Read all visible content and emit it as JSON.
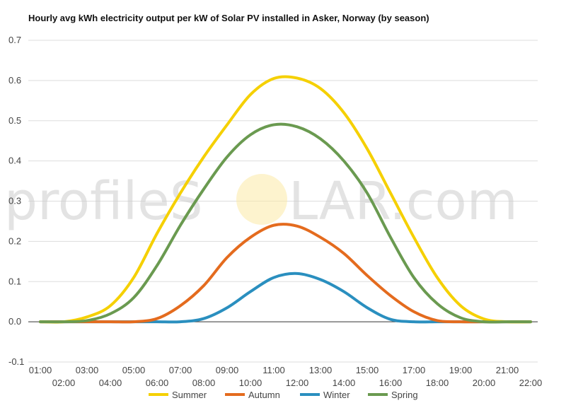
{
  "chart_data": {
    "type": "line",
    "title": "Hourly avg kWh electricity output per kW of Solar PV installed in Asker, Norway (by season)",
    "xlabel": "",
    "ylabel": "",
    "ylim": [
      -0.1,
      0.7
    ],
    "yticks": [
      "-0.1",
      "0.0",
      "0.1",
      "0.2",
      "0.3",
      "0.4",
      "0.5",
      "0.6",
      "0.7"
    ],
    "grid": true,
    "legend_position": "bottom",
    "categories": [
      "01:00",
      "02:00",
      "03:00",
      "04:00",
      "05:00",
      "06:00",
      "07:00",
      "08:00",
      "09:00",
      "10:00",
      "11:00",
      "12:00",
      "13:00",
      "14:00",
      "15:00",
      "16:00",
      "17:00",
      "18:00",
      "19:00",
      "20:00",
      "21:00",
      "22:00"
    ],
    "series": [
      {
        "name": "Summer",
        "color": "#f5d000",
        "values": [
          0,
          0,
          0.012,
          0.04,
          0.11,
          0.22,
          0.32,
          0.41,
          0.49,
          0.565,
          0.605,
          0.606,
          0.58,
          0.52,
          0.43,
          0.32,
          0.21,
          0.11,
          0.04,
          0.007,
          0,
          0
        ]
      },
      {
        "name": "Autumn",
        "color": "#e46b1e",
        "values": [
          0,
          0,
          0,
          0,
          0,
          0.008,
          0.04,
          0.09,
          0.16,
          0.21,
          0.24,
          0.238,
          0.21,
          0.17,
          0.115,
          0.065,
          0.025,
          0.003,
          0,
          0,
          0,
          0
        ]
      },
      {
        "name": "Winter",
        "color": "#2a8fbf",
        "values": [
          0,
          0,
          0,
          0,
          0,
          0,
          0,
          0.008,
          0.035,
          0.075,
          0.11,
          0.12,
          0.105,
          0.075,
          0.035,
          0.006,
          0,
          0,
          0,
          0,
          0,
          0
        ]
      },
      {
        "name": "Spring",
        "color": "#6a9a50",
        "values": [
          0,
          0,
          0.003,
          0.02,
          0.06,
          0.14,
          0.24,
          0.33,
          0.41,
          0.465,
          0.49,
          0.485,
          0.455,
          0.4,
          0.32,
          0.21,
          0.11,
          0.045,
          0.01,
          0,
          0,
          0
        ]
      }
    ]
  },
  "watermark": {
    "left": "profileS",
    "right": "LAR.com"
  }
}
